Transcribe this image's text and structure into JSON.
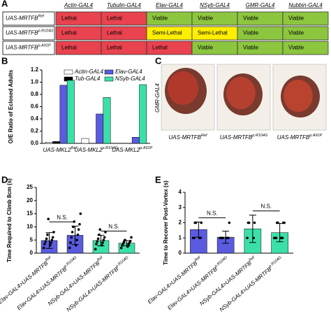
{
  "panel_labels": [
    "A",
    "B",
    "C",
    "D",
    "E"
  ],
  "table": {
    "columns": [
      "Actin-GAL4",
      "Tubulin-GAL4",
      "Elav-GAL4",
      "NSyb-GAL4",
      "GMR-GAL4",
      "Nubbin-GAL4"
    ],
    "rows": [
      {
        "base": "UAS-MRTFB",
        "sup": "Ref",
        "cells": [
          "Lethal",
          "Lethal",
          "Viable",
          "Viable",
          "Viable",
          "Viable"
        ]
      },
      {
        "base": "UAS-MRTFB",
        "sup": "p.R104G",
        "cells": [
          "Lethal",
          "Lethal",
          "Semi-Lethal",
          "Semi-Lethal",
          "Viable",
          "Viable"
        ]
      },
      {
        "base": "UAS-MRTFB",
        "sup": "p.A91P",
        "cells": [
          "Lethal",
          "Lethal",
          "Lethal",
          "Viable",
          "Viable",
          "Viable"
        ]
      }
    ]
  },
  "images": {
    "side_label": "GMR-GAL4",
    "labels": [
      {
        "base": "UAS-MRTFB",
        "sup": "Ref"
      },
      {
        "base": "UAS-MRTFB",
        "sup": "p.R104G"
      },
      {
        "base": "UAS-MRTFB",
        "sup": "p.A91P"
      }
    ]
  },
  "chart_data": [
    {
      "type": "grouped_bar",
      "ylabel": "O/E Ratio of Eclosed Adults",
      "categories": [
        "UAS-MKL2",
        "UAS-MKL2",
        "UAS-MKL2"
      ],
      "category_superscripts": [
        "Ref",
        "p.R104G",
        "p.A91P"
      ],
      "series": [
        {
          "name": "Actin-GAL4",
          "color": "#ffffff",
          "values": [
            0.02,
            0.08,
            0
          ]
        },
        {
          "name": "Tub-GAL4",
          "color": "#000000",
          "values": [
            0.03,
            0,
            0
          ]
        },
        {
          "name": "Elav-GAL4",
          "color": "#5b5be0",
          "values": [
            0.95,
            0.48,
            0.1
          ]
        },
        {
          "name": "NSyb-GAL4",
          "color": "#3be0a8",
          "values": [
            1.03,
            0.75,
            0.96
          ]
        }
      ],
      "ylim": [
        0,
        1.2
      ],
      "yticks": [
        {
          "value": 0,
          "label": "0.0"
        },
        {
          "value": 0.2,
          "label": "0.2"
        },
        {
          "value": 0.4,
          "label": "0.4"
        },
        {
          "value": 0.6,
          "label": "0.6"
        },
        {
          "value": 0.8,
          "label": "0.8"
        },
        {
          "value": 1,
          "label": "1.0"
        },
        {
          "value": 1.2,
          "label": "1.2"
        }
      ]
    },
    {
      "type": "dot_bar",
      "ylabel": "Time Required to Climb 8cm (s)",
      "categories": [
        "Elav-GAL4>UAS-MRTFB",
        "Elav-GAL4>UAS-MRTFB",
        "NSyb-GAL4>UAS-MRTFB",
        "NSyb-GAL4>UAS-MRTFB"
      ],
      "category_superscripts": [
        "Ref",
        "p.R104G",
        "Ref",
        "p.R104G"
      ],
      "values": [
        4.8,
        6.8,
        4.8,
        3.8
      ],
      "errors": [
        3,
        3.5,
        2,
        1
      ],
      "colors": [
        "#5b5be0",
        "#5b5be0",
        "#3be0a8",
        "#3be0a8"
      ],
      "points": [
        [
          2,
          3,
          3.5,
          4,
          4.5,
          5,
          5.5,
          6,
          7,
          8,
          13
        ],
        [
          2,
          3,
          4,
          5,
          6,
          7,
          8,
          9,
          10,
          11,
          12,
          15
        ],
        [
          1.5,
          3,
          3.5,
          4,
          4.5,
          5,
          5.5,
          6,
          7,
          8,
          9
        ],
        [
          2,
          2.5,
          3,
          3.3,
          3.6,
          4,
          4.3,
          4.6,
          5,
          6
        ]
      ],
      "annotations": [
        "N.S.",
        "N.S."
      ],
      "ylim": [
        0,
        25
      ],
      "yticks": [
        0,
        5,
        10,
        15,
        20,
        25
      ]
    },
    {
      "type": "dot_bar",
      "ylabel": "Time to Recover Post-Vortex (s)",
      "categories": [
        "Elav-GAL4>UAS-MRTFB",
        "Elav-GAL4>UAS-MRTFB",
        "NSyb-GAL4>UAS-MRTFB",
        "NSyb-GAL4>UAS-MRTFB"
      ],
      "category_superscripts": [
        "Ref",
        "p.R104G",
        "Ref",
        "p.R104G"
      ],
      "values": [
        1.55,
        1.05,
        1.6,
        1.35
      ],
      "errors": [
        0.5,
        0.4,
        0.9,
        0.6
      ],
      "colors": [
        "#5b5be0",
        "#5b5be0",
        "#3be0a8",
        "#3be0a8"
      ],
      "points": [
        [
          1,
          1,
          1,
          1,
          2,
          2,
          2
        ],
        [
          1,
          1,
          1,
          1,
          1,
          1,
          1,
          2
        ],
        [
          1,
          1,
          2,
          2,
          2
        ],
        [
          1,
          1,
          1,
          1,
          1,
          1,
          2,
          2,
          2,
          2
        ]
      ],
      "annotations": [
        "N.S.",
        "N.S."
      ],
      "ylim": [
        0,
        4
      ],
      "yticks": [
        0,
        1,
        2,
        3,
        4
      ]
    }
  ]
}
